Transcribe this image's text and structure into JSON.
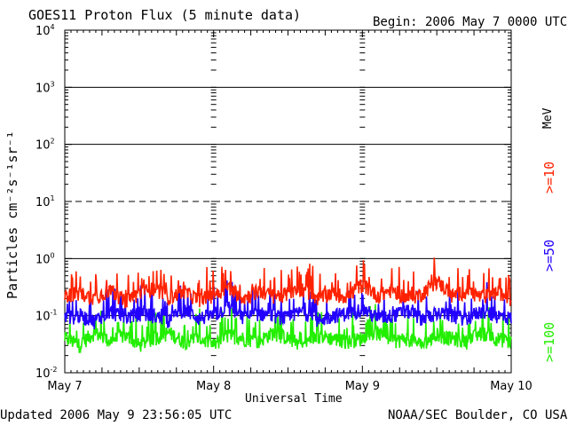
{
  "header": {
    "title": "GOES11 Proton Flux (5 minute data)",
    "begin": "Begin: 2006 May 7 0000 UTC"
  },
  "footer": {
    "updated": "Updated 2006 May  9 23:56:05 UTC",
    "source": "NOAA/SEC Boulder, CO USA"
  },
  "chart_data": {
    "type": "line",
    "title": "GOES11 Proton Flux (5 minute data)",
    "xlabel": "Universal Time",
    "ylabel": "Particles cm⁻²s⁻¹sr⁻¹",
    "y_scale": "log",
    "ylim": [
      0.01,
      10000
    ],
    "xlim": [
      0,
      3
    ],
    "x_tick_labels": [
      "May 7",
      "May 8",
      "May 9",
      "May 10"
    ],
    "x_ticks": [
      0,
      1,
      2,
      3
    ],
    "y_tick_labels": [
      {
        "base": "10",
        "exp": "-2"
      },
      {
        "base": "10",
        "exp": "-1"
      },
      {
        "base": "10",
        "exp": "0"
      },
      {
        "base": "10",
        "exp": "1"
      },
      {
        "base": "10",
        "exp": "2"
      },
      {
        "base": "10",
        "exp": "3"
      },
      {
        "base": "10",
        "exp": "4"
      }
    ],
    "y_ticks": [
      0.01,
      0.1,
      1,
      10,
      100,
      1000,
      10000
    ],
    "gridlines": [
      {
        "value": 0.1,
        "style": "solid"
      },
      {
        "value": 1,
        "style": "solid"
      },
      {
        "value": 10,
        "style": "dashed"
      },
      {
        "value": 100,
        "style": "solid"
      },
      {
        "value": 1000,
        "style": "solid"
      }
    ],
    "series": [
      {
        "name": ">=10",
        "color": "#ff2200",
        "x": [
          0,
          0.1,
          0.2,
          0.3,
          0.4,
          0.5,
          0.6,
          0.7,
          0.8,
          0.9,
          1.0,
          1.1,
          1.2,
          1.3,
          1.4,
          1.5,
          1.6,
          1.7,
          1.8,
          1.9,
          2.0,
          2.1,
          2.2,
          2.3,
          2.4,
          2.5,
          2.6,
          2.7,
          2.8,
          2.9,
          3.0
        ],
        "values": [
          0.22,
          0.25,
          0.2,
          0.28,
          0.18,
          0.24,
          0.3,
          0.21,
          0.26,
          0.19,
          0.23,
          0.32,
          0.2,
          0.27,
          0.22,
          0.24,
          0.29,
          0.2,
          0.25,
          0.21,
          0.35,
          0.22,
          0.28,
          0.2,
          0.24,
          0.4,
          0.22,
          0.27,
          0.21,
          0.25,
          0.2
        ]
      },
      {
        "name": ">=50",
        "color": "#2200ff",
        "x": [
          0,
          0.1,
          0.2,
          0.3,
          0.4,
          0.5,
          0.6,
          0.7,
          0.8,
          0.9,
          1.0,
          1.1,
          1.2,
          1.3,
          1.4,
          1.5,
          1.6,
          1.7,
          1.8,
          1.9,
          2.0,
          2.1,
          2.2,
          2.3,
          2.4,
          2.5,
          2.6,
          2.7,
          2.8,
          2.9,
          3.0
        ],
        "values": [
          0.09,
          0.1,
          0.08,
          0.12,
          0.09,
          0.11,
          0.1,
          0.08,
          0.13,
          0.09,
          0.1,
          0.14,
          0.09,
          0.11,
          0.1,
          0.09,
          0.12,
          0.08,
          0.1,
          0.11,
          0.13,
          0.09,
          0.1,
          0.12,
          0.09,
          0.11,
          0.1,
          0.09,
          0.12,
          0.1,
          0.09
        ]
      },
      {
        "name": ">=100",
        "color": "#22ee00",
        "x": [
          0,
          0.1,
          0.2,
          0.3,
          0.4,
          0.5,
          0.6,
          0.7,
          0.8,
          0.9,
          1.0,
          1.1,
          1.2,
          1.3,
          1.4,
          1.5,
          1.6,
          1.7,
          1.8,
          1.9,
          2.0,
          2.1,
          2.2,
          2.3,
          2.4,
          2.5,
          2.6,
          2.7,
          2.8,
          2.9,
          3.0
        ],
        "values": [
          0.04,
          0.03,
          0.05,
          0.035,
          0.045,
          0.03,
          0.04,
          0.05,
          0.035,
          0.04,
          0.03,
          0.045,
          0.04,
          0.035,
          0.05,
          0.04,
          0.03,
          0.045,
          0.04,
          0.035,
          0.04,
          0.05,
          0.035,
          0.04,
          0.03,
          0.045,
          0.04,
          0.035,
          0.05,
          0.04,
          0.035
        ]
      }
    ],
    "legend": {
      "unit": "MeV",
      "placement": "right-vertical"
    }
  }
}
